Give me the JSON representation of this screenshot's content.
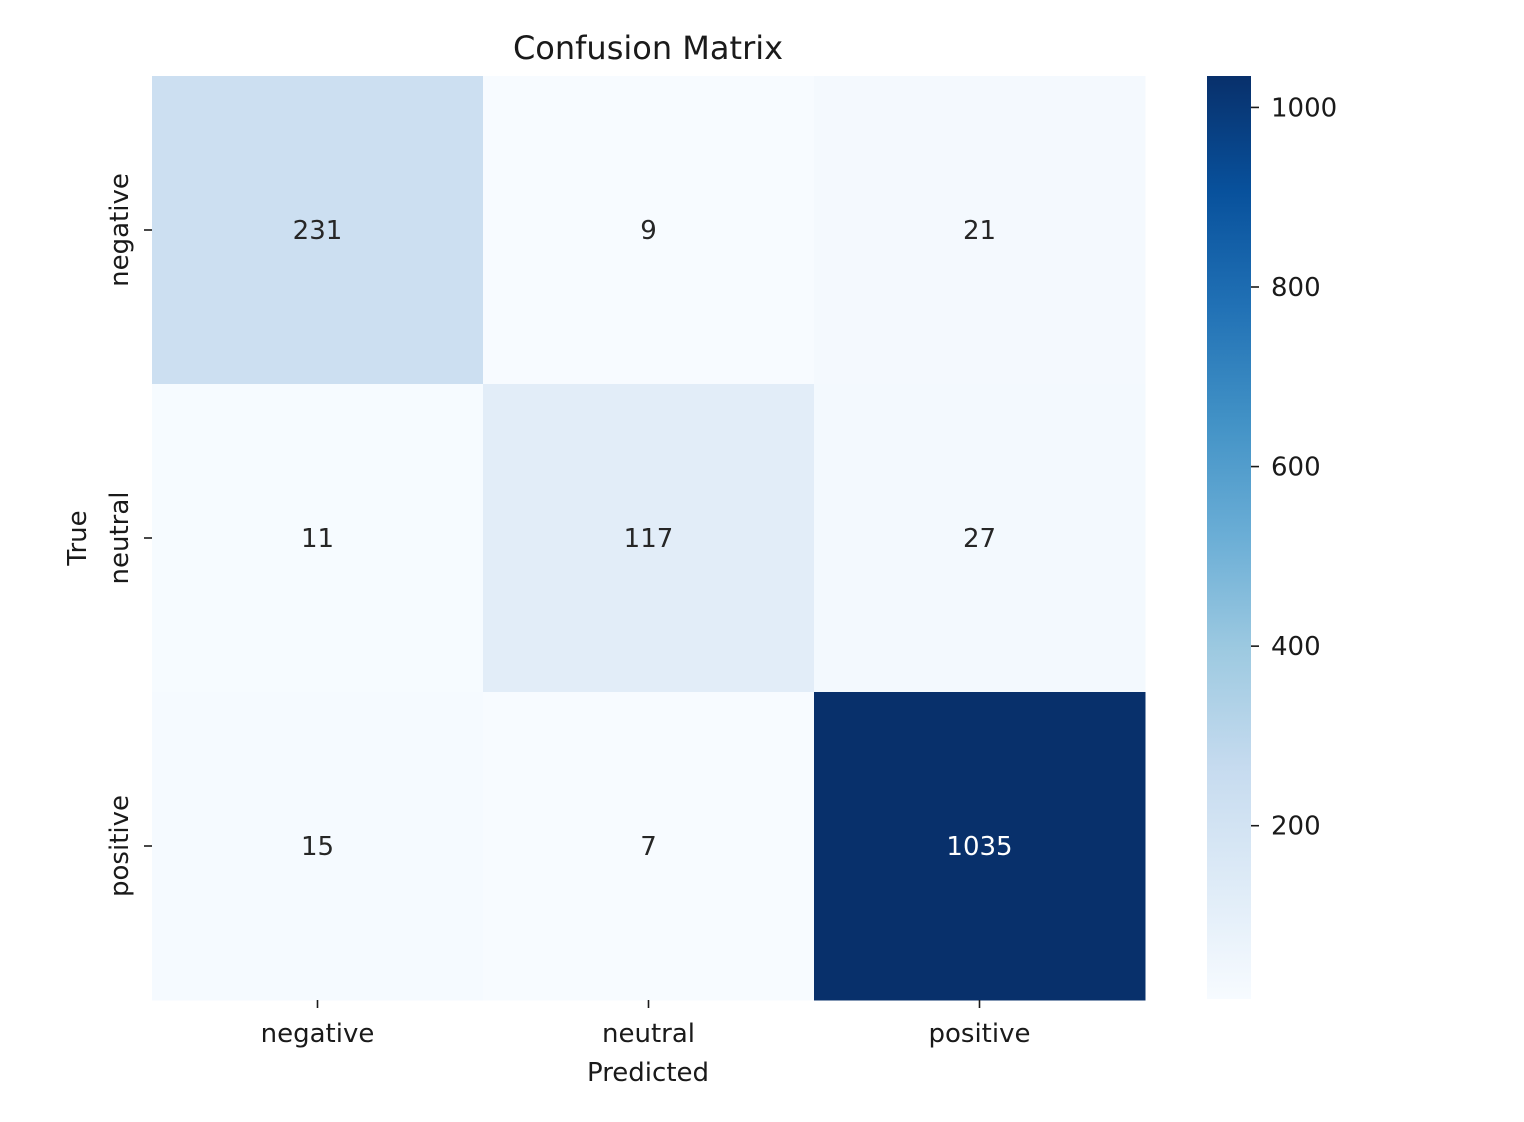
{
  "chart_data": {
    "type": "heatmap",
    "title": "Confusion Matrix",
    "xlabel": "Predicted",
    "ylabel": "True",
    "x_categories": [
      "negative",
      "neutral",
      "positive"
    ],
    "y_categories": [
      "negative",
      "neutral",
      "positive"
    ],
    "values": [
      [
        231,
        9,
        21
      ],
      [
        11,
        117,
        27
      ],
      [
        15,
        7,
        1035
      ]
    ],
    "colormap": "Blues",
    "colors": {
      "low": "#f7fbff",
      "high": "#08306b",
      "text_dark": "#262626",
      "text_light": "#ffffff"
    },
    "color_range": [
      7,
      1035
    ],
    "colorbar": {
      "ticks": [
        200,
        400,
        600,
        800,
        1000
      ],
      "tick_labels": [
        "200",
        "400",
        "600",
        "800",
        "1000"
      ]
    }
  }
}
